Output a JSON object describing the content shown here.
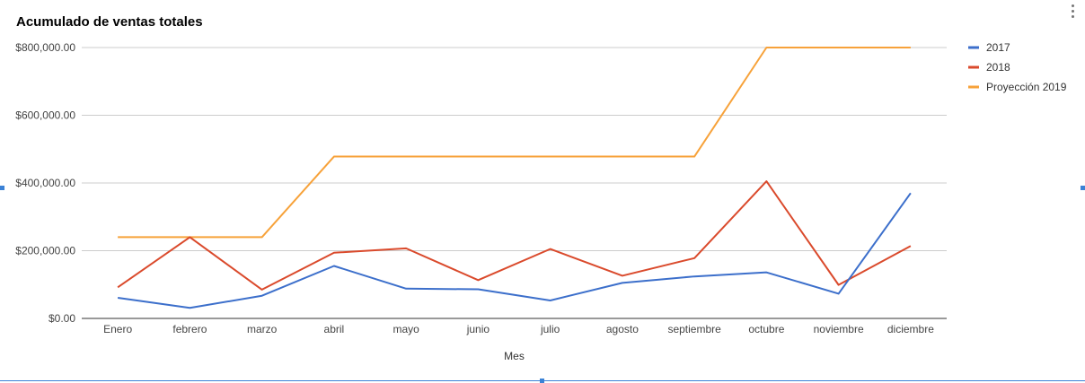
{
  "chart_data": {
    "type": "line",
    "title": "Acumulado de ventas totales",
    "xlabel": "Mes",
    "ylabel": "",
    "categories": [
      "Enero",
      "febrero",
      "marzo",
      "abril",
      "mayo",
      "junio",
      "julio",
      "agosto",
      "septiembre",
      "octubre",
      "noviembre",
      "diciembre"
    ],
    "y_ticks": [
      "$0.00",
      "$200,000.00",
      "$400,000.00",
      "$600,000.00",
      "$800,000.00"
    ],
    "ylim": [
      0,
      800000
    ],
    "grid": true,
    "legend_position": "right",
    "series": [
      {
        "name": "2017",
        "color": "#3c6fcb",
        "values": [
          61000,
          31000,
          67000,
          155000,
          88000,
          86000,
          53000,
          105000,
          124000,
          136000,
          73000,
          370000
        ]
      },
      {
        "name": "2018",
        "color": "#da4a2c",
        "values": [
          92000,
          240000,
          85000,
          194000,
          207000,
          113000,
          205000,
          126000,
          178000,
          405000,
          99000,
          214000
        ]
      },
      {
        "name": "Proyección 2019",
        "color": "#f7a23a",
        "values": [
          240000,
          240000,
          240000,
          478000,
          478000,
          478000,
          478000,
          478000,
          478000,
          800000,
          800000,
          800000
        ]
      }
    ]
  },
  "menu": {
    "icon": "more-vert-icon"
  }
}
